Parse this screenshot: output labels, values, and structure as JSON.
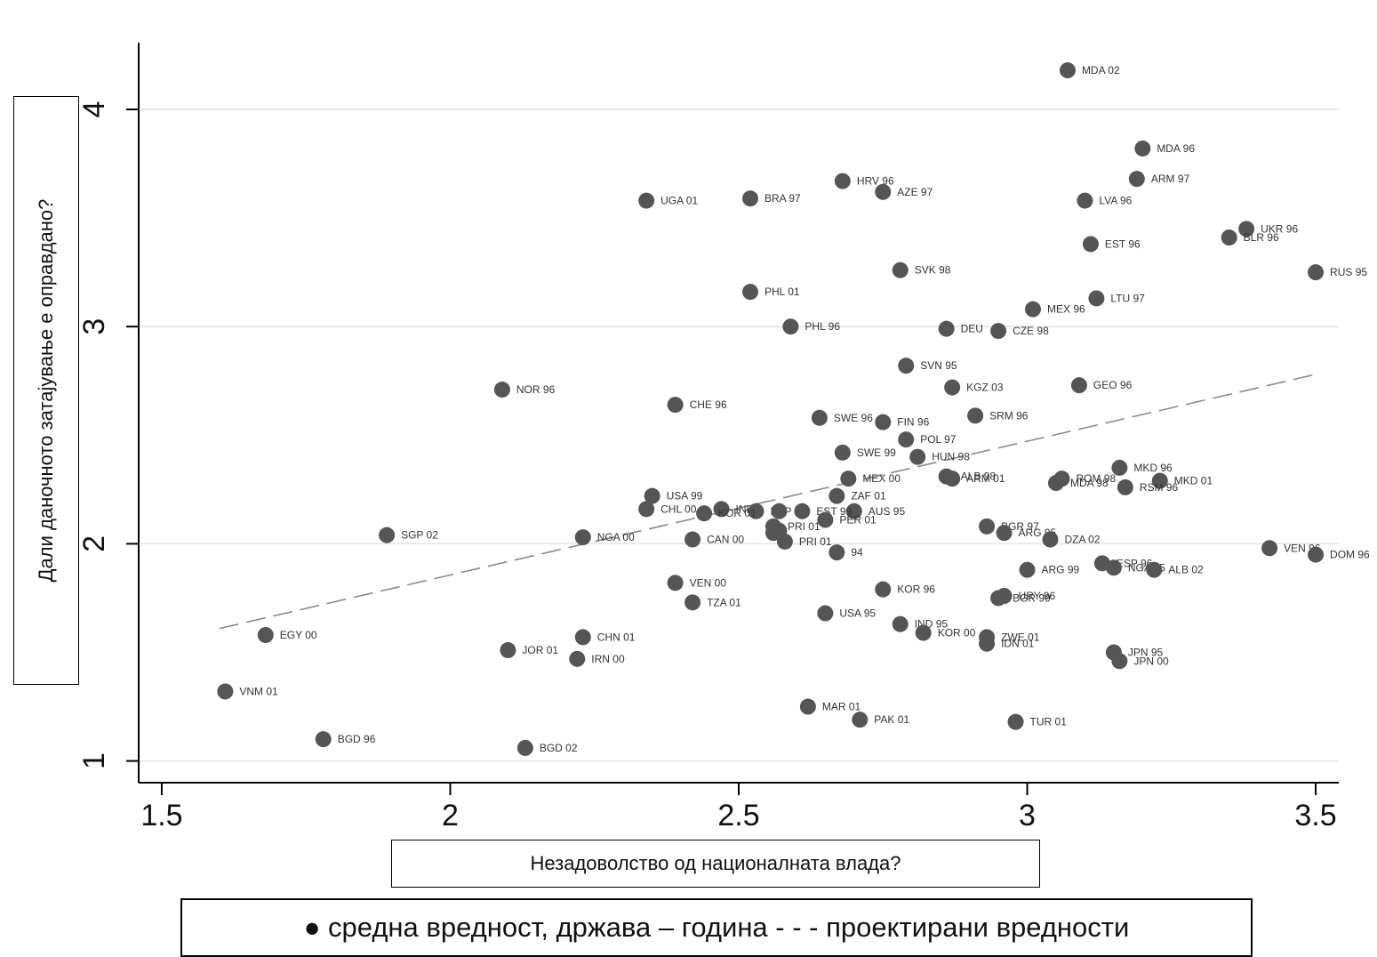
{
  "chart_data": {
    "type": "scatter",
    "ylabel": "Дали даночното затајување е оправдано?",
    "xlabel": "Незадоволство од националната влада?",
    "legend": "● средна вредност, држава – година - - - проектирани вредности",
    "legend_placement": "bottom",
    "xlim": [
      1.46,
      3.54
    ],
    "ylim": [
      0.9,
      4.34
    ],
    "xticks": [
      1.5,
      2,
      2.5,
      3,
      3.5
    ],
    "xtick_labels": [
      "1.5",
      "2",
      "2.5",
      "3",
      "3.5"
    ],
    "yticks": [
      1,
      2,
      3,
      4
    ],
    "ytick_labels": [
      "1",
      "2",
      "3",
      "4"
    ],
    "grid": "horizontal",
    "point_color": "#555555",
    "fit_line": {
      "style": "dashed",
      "color": "#8a8a8a",
      "x": [
        1.6,
        3.5
      ],
      "y": [
        1.61,
        2.78
      ]
    },
    "points": [
      {
        "label": "MDA 02",
        "x": 3.07,
        "y": 4.18
      },
      {
        "label": "MDA 96",
        "x": 3.2,
        "y": 3.82
      },
      {
        "label": "ARM 97",
        "x": 3.19,
        "y": 3.68
      },
      {
        "label": "HRV 96",
        "x": 2.68,
        "y": 3.67
      },
      {
        "label": "AZE 97",
        "x": 2.75,
        "y": 3.62
      },
      {
        "label": "UGA 01",
        "x": 2.34,
        "y": 3.58
      },
      {
        "label": "BRA 97",
        "x": 2.52,
        "y": 3.59
      },
      {
        "label": "LVA 96",
        "x": 3.1,
        "y": 3.58
      },
      {
        "label": "UKR 96",
        "x": 3.38,
        "y": 3.45
      },
      {
        "label": "BLR 96",
        "x": 3.35,
        "y": 3.41
      },
      {
        "label": "EST 96",
        "x": 3.11,
        "y": 3.38
      },
      {
        "label": "RUS 95",
        "x": 3.5,
        "y": 3.25
      },
      {
        "label": "SVK 98",
        "x": 2.78,
        "y": 3.26
      },
      {
        "label": "PHL 01",
        "x": 2.52,
        "y": 3.16
      },
      {
        "label": "LTU 97",
        "x": 3.12,
        "y": 3.13
      },
      {
        "label": "MEX 96",
        "x": 3.01,
        "y": 3.08
      },
      {
        "label": "PHL 96",
        "x": 2.59,
        "y": 3.0
      },
      {
        "label": "DEU",
        "x": 2.86,
        "y": 2.99
      },
      {
        "label": "CZE 98",
        "x": 2.95,
        "y": 2.98
      },
      {
        "label": "SVN 95",
        "x": 2.79,
        "y": 2.82
      },
      {
        "label": "NOR 96",
        "x": 2.09,
        "y": 2.71
      },
      {
        "label": "KGZ 03",
        "x": 2.87,
        "y": 2.72
      },
      {
        "label": "GEO 96",
        "x": 3.09,
        "y": 2.73
      },
      {
        "label": "CHE 96",
        "x": 2.39,
        "y": 2.64
      },
      {
        "label": "SRM 96",
        "x": 2.91,
        "y": 2.59
      },
      {
        "label": "SWE 96",
        "x": 2.64,
        "y": 2.58
      },
      {
        "label": "FIN 96",
        "x": 2.75,
        "y": 2.56
      },
      {
        "label": "POL 97",
        "x": 2.79,
        "y": 2.48
      },
      {
        "label": "SWE 99",
        "x": 2.68,
        "y": 2.42
      },
      {
        "label": "HUN 98",
        "x": 2.81,
        "y": 2.4
      },
      {
        "label": "MKD 96",
        "x": 3.16,
        "y": 2.35
      },
      {
        "label": "MEX 00",
        "x": 2.69,
        "y": 2.3
      },
      {
        "label": "ALB 98",
        "x": 2.86,
        "y": 2.31
      },
      {
        "label": "ARM 01",
        "x": 2.87,
        "y": 2.3
      },
      {
        "label": "MKD 01",
        "x": 3.23,
        "y": 2.29
      },
      {
        "label": "ROM 98",
        "x": 3.06,
        "y": 2.3
      },
      {
        "label": "MDA 98",
        "x": 3.05,
        "y": 2.28
      },
      {
        "label": "RSM 96",
        "x": 3.17,
        "y": 2.26
      },
      {
        "label": "USA 99",
        "x": 2.35,
        "y": 2.22
      },
      {
        "label": "ZAF 01",
        "x": 2.67,
        "y": 2.22
      },
      {
        "label": "CHL 00",
        "x": 2.34,
        "y": 2.16
      },
      {
        "label": "IND",
        "x": 2.47,
        "y": 2.16
      },
      {
        "label": "ESP 95",
        "x": 2.53,
        "y": 2.15
      },
      {
        "label": "AUS 95",
        "x": 2.7,
        "y": 2.15
      },
      {
        "label": "KOR 01",
        "x": 2.44,
        "y": 2.14
      },
      {
        "label": "",
        "x": 2.57,
        "y": 2.15
      },
      {
        "label": "EST 99",
        "x": 2.61,
        "y": 2.15
      },
      {
        "label": "PER 01",
        "x": 2.65,
        "y": 2.11
      },
      {
        "label": "PRI 01",
        "x": 2.56,
        "y": 2.08
      },
      {
        "label": "",
        "x": 2.57,
        "y": 2.06
      },
      {
        "label": "",
        "x": 2.56,
        "y": 2.05
      },
      {
        "label": "BGR 97",
        "x": 2.93,
        "y": 2.08
      },
      {
        "label": "SGP 02",
        "x": 1.89,
        "y": 2.04
      },
      {
        "label": "ARG 95",
        "x": 2.96,
        "y": 2.05
      },
      {
        "label": "NGA 00",
        "x": 2.23,
        "y": 2.03
      },
      {
        "label": "CAN 00",
        "x": 2.42,
        "y": 2.02
      },
      {
        "label": "PRI 01",
        "x": 2.58,
        "y": 2.01
      },
      {
        "label": "DZA 02",
        "x": 3.04,
        "y": 2.02
      },
      {
        "label": "VEN 96",
        "x": 3.42,
        "y": 1.98
      },
      {
        "label": "DOM 96",
        "x": 3.5,
        "y": 1.95
      },
      {
        "label": "94",
        "x": 2.67,
        "y": 1.96
      },
      {
        "label": "ESP 96",
        "x": 3.13,
        "y": 1.91
      },
      {
        "label": "NGA 95",
        "x": 3.15,
        "y": 1.89
      },
      {
        "label": "ALB 02",
        "x": 3.22,
        "y": 1.88
      },
      {
        "label": "ARG 99",
        "x": 3.0,
        "y": 1.88
      },
      {
        "label": "VEN 00",
        "x": 2.39,
        "y": 1.82
      },
      {
        "label": "KOR 96",
        "x": 2.75,
        "y": 1.79
      },
      {
        "label": "URY 96",
        "x": 2.96,
        "y": 1.76
      },
      {
        "label": "BGR 99",
        "x": 2.95,
        "y": 1.75
      },
      {
        "label": "TZA 01",
        "x": 2.42,
        "y": 1.73
      },
      {
        "label": "USA 95",
        "x": 2.65,
        "y": 1.68
      },
      {
        "label": "IND 95",
        "x": 2.78,
        "y": 1.63
      },
      {
        "label": "KOR 00",
        "x": 2.82,
        "y": 1.59
      },
      {
        "label": "ZWE 01",
        "x": 2.93,
        "y": 1.57
      },
      {
        "label": "IDN 01",
        "x": 2.93,
        "y": 1.54
      },
      {
        "label": "EGY 00",
        "x": 1.68,
        "y": 1.58
      },
      {
        "label": "CHN 01",
        "x": 2.23,
        "y": 1.57
      },
      {
        "label": "JOR 01",
        "x": 2.1,
        "y": 1.51
      },
      {
        "label": "IRN 00",
        "x": 2.22,
        "y": 1.47
      },
      {
        "label": "JPN 95",
        "x": 3.15,
        "y": 1.5
      },
      {
        "label": "JPN 00",
        "x": 3.16,
        "y": 1.46
      },
      {
        "label": "VNM 01",
        "x": 1.61,
        "y": 1.32
      },
      {
        "label": "MAR 01",
        "x": 2.62,
        "y": 1.25
      },
      {
        "label": "PAK 01",
        "x": 2.71,
        "y": 1.19
      },
      {
        "label": "TUR 01",
        "x": 2.98,
        "y": 1.18
      },
      {
        "label": "BGD 96",
        "x": 1.78,
        "y": 1.1
      },
      {
        "label": "BGD 02",
        "x": 2.13,
        "y": 1.06
      }
    ]
  }
}
